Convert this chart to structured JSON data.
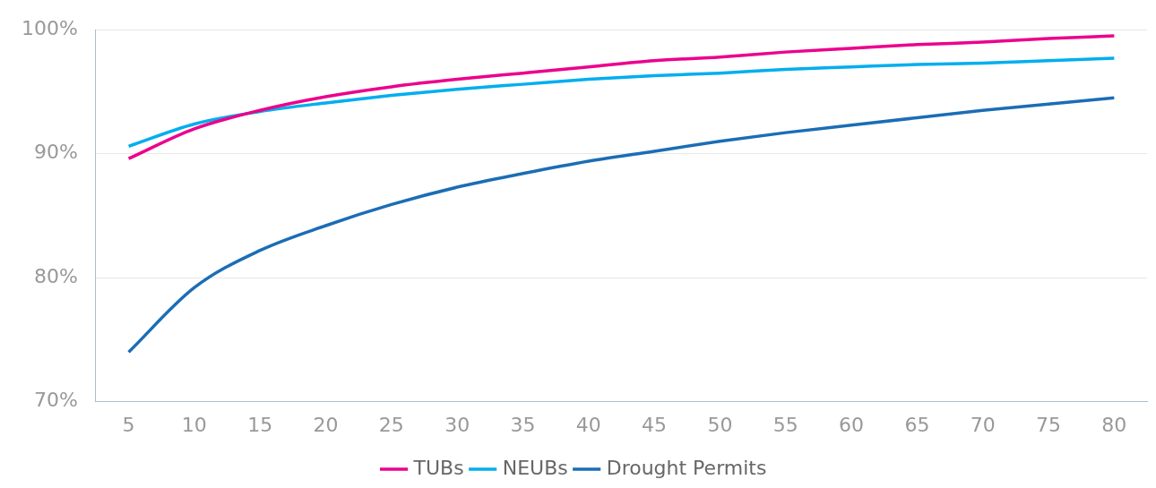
{
  "chart_data": {
    "type": "line",
    "categories": [
      "5",
      "10",
      "15",
      "20",
      "25",
      "30",
      "35",
      "40",
      "45",
      "50",
      "55",
      "60",
      "65",
      "70",
      "75",
      "80"
    ],
    "series": [
      {
        "name": "TUBs",
        "color": "#ec008c",
        "values": [
          89.6,
          92.0,
          93.5,
          94.6,
          95.4,
          96.0,
          96.5,
          97.0,
          97.5,
          97.8,
          98.2,
          98.5,
          98.8,
          99.0,
          99.3,
          99.5
        ]
      },
      {
        "name": "NEUBs",
        "color": "#00aeef",
        "values": [
          90.6,
          92.4,
          93.4,
          94.1,
          94.7,
          95.2,
          95.6,
          96.0,
          96.3,
          96.5,
          96.8,
          97.0,
          97.2,
          97.3,
          97.5,
          97.7
        ]
      },
      {
        "name": "Drought Permits",
        "color": "#1b6db5",
        "values": [
          74.0,
          79.2,
          82.2,
          84.2,
          85.9,
          87.3,
          88.4,
          89.4,
          90.2,
          91.0,
          91.7,
          92.3,
          92.9,
          93.5,
          94.0,
          94.5
        ]
      }
    ],
    "ylim": [
      70,
      100
    ],
    "yticks": [
      {
        "value": 70,
        "label": "70%"
      },
      {
        "value": 80,
        "label": "80%"
      },
      {
        "value": 90,
        "label": "90%"
      },
      {
        "value": 100,
        "label": "100%"
      }
    ],
    "grid": "y",
    "legend": "bottom",
    "marker": "none",
    "line_style": "solid"
  }
}
